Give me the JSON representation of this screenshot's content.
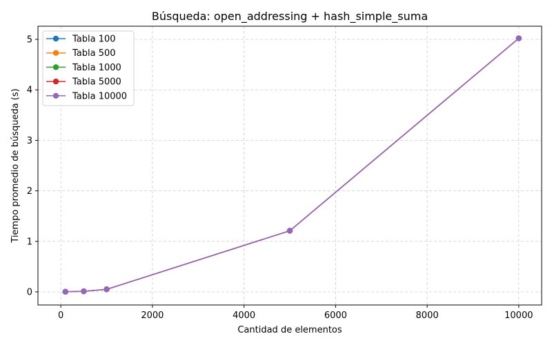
{
  "chart_data": {
    "type": "line",
    "title": "Búsqueda: open_addressing + hash_simple_suma",
    "xlabel": "Cantidad de elementos",
    "ylabel": "Tiempo promedio de búsqueda (s)",
    "xlim": [
      -500,
      10500
    ],
    "ylim": [
      -0.26,
      5.26
    ],
    "xticks": [
      0,
      2000,
      4000,
      6000,
      8000,
      10000
    ],
    "yticks": [
      0,
      1,
      2,
      3,
      4,
      5
    ],
    "grid": true,
    "legend_position": "top-left",
    "x": [
      100,
      500,
      1000,
      5000,
      10000
    ],
    "series": [
      {
        "name": "Tabla 100",
        "color": "#1f77b4",
        "values": [
          0.002,
          0.012,
          0.05,
          1.21,
          5.02
        ]
      },
      {
        "name": "Tabla 500",
        "color": "#ff7f0e",
        "values": [
          0.002,
          0.011,
          0.05,
          1.21,
          5.02
        ]
      },
      {
        "name": "Tabla 1000",
        "color": "#2ca02c",
        "values": [
          0.002,
          0.011,
          0.049,
          1.21,
          5.02
        ]
      },
      {
        "name": "Tabla 5000",
        "color": "#d62728",
        "values": [
          0.002,
          0.011,
          0.049,
          1.21,
          5.02
        ]
      },
      {
        "name": "Tabla 10000",
        "color": "#9467bd",
        "values": [
          0.002,
          0.011,
          0.049,
          1.21,
          5.02
        ]
      }
    ]
  }
}
